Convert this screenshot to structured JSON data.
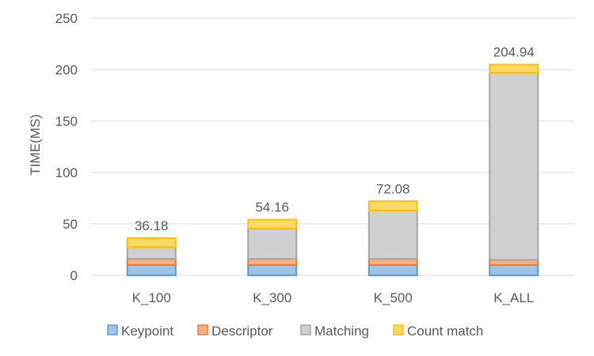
{
  "chart_data": {
    "type": "bar",
    "stacked": true,
    "categories": [
      "K_100",
      "K_300",
      "K_500",
      "K_ALL"
    ],
    "series": [
      {
        "name": "Keypoint",
        "values": [
          10,
          10,
          10,
          10
        ],
        "fill": "#9dc3e6",
        "stroke": "#5b9bd5"
      },
      {
        "name": "Descriptor",
        "values": [
          6,
          6,
          6,
          5
        ],
        "fill": "#f4b183",
        "stroke": "#ed7d31"
      },
      {
        "name": "Matching",
        "values": [
          11.5,
          29.5,
          47,
          182
        ],
        "fill": "#d0d0d0",
        "stroke": "#a5a5a5"
      },
      {
        "name": "Count match",
        "values": [
          8.68,
          8.66,
          9.08,
          7.94
        ],
        "fill": "#ffd966",
        "stroke": "#ffc000"
      }
    ],
    "totals": [
      "36.18",
      "54.16",
      "72.08",
      "204.94"
    ],
    "ylabel": "TIME(MS)",
    "xlabel": "",
    "ylim": [
      0,
      250
    ],
    "yticks": [
      0,
      50,
      100,
      150,
      200,
      250
    ],
    "grid": true,
    "legend": "bottom"
  }
}
